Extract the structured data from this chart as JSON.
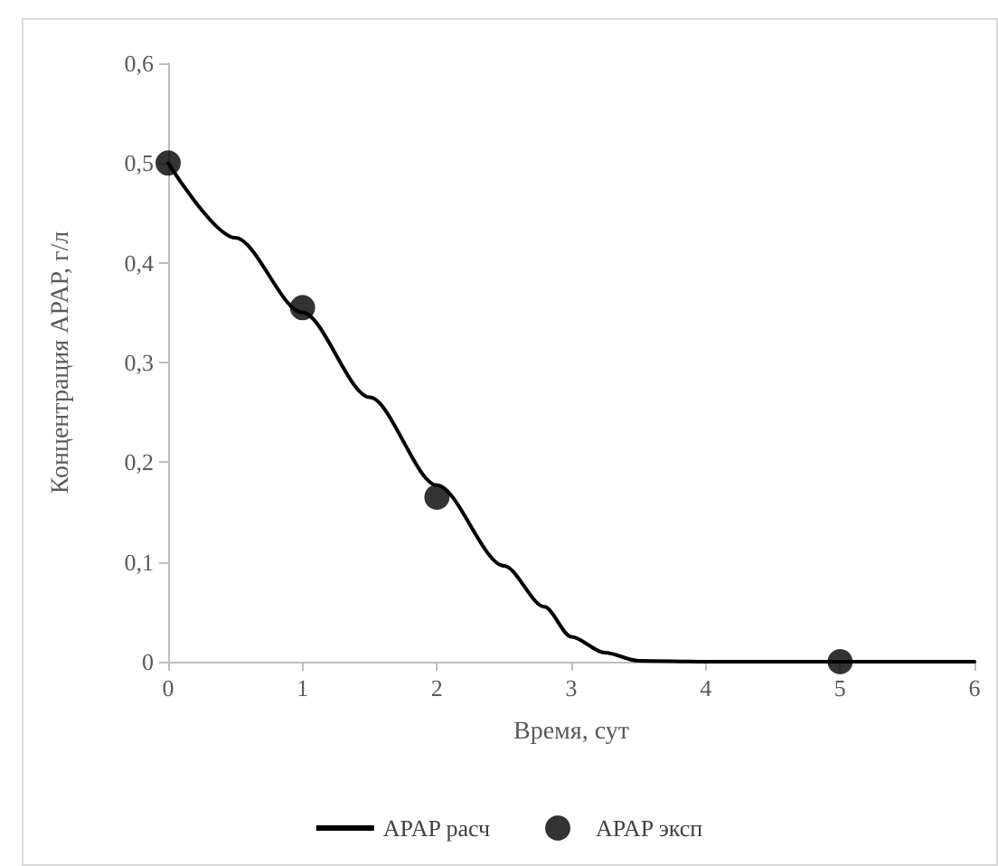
{
  "chart_data": {
    "type": "line",
    "xlabel": "Время, сут",
    "ylabel": "Концентрация APAP, г/л",
    "xlim": [
      0,
      6
    ],
    "xticks": [
      0,
      1,
      2,
      3,
      4,
      5,
      6
    ],
    "ylim": [
      0,
      0.6
    ],
    "yticks": [
      {
        "value": 0,
        "label": "0"
      },
      {
        "value": 0.1,
        "label": "0,1"
      },
      {
        "value": 0.2,
        "label": "0,2"
      },
      {
        "value": 0.3,
        "label": "0,3"
      },
      {
        "value": 0.4,
        "label": "0,4"
      },
      {
        "value": 0.5,
        "label": "0,5"
      },
      {
        "value": 0.6,
        "label": "0,6"
      }
    ],
    "grid": false,
    "legend": "bottom",
    "series": [
      {
        "name": "APAP расч",
        "color": "#000000",
        "marker": "none",
        "line_style": "solid",
        "x": [
          0,
          0.5,
          1,
          1.5,
          2,
          2.5,
          2.8,
          3,
          3.25,
          3.5,
          4,
          5,
          6
        ],
        "values": [
          0.5,
          0.425,
          0.35,
          0.265,
          0.177,
          0.096,
          0.055,
          0.025,
          0.009,
          0.001,
          0,
          0,
          0
        ]
      },
      {
        "name": "APAP эксп",
        "type": "scatter",
        "color": "#000000",
        "marker": "circle",
        "x": [
          0,
          1,
          2,
          5
        ],
        "values": [
          0.5,
          0.355,
          0.165,
          0
        ]
      }
    ]
  }
}
